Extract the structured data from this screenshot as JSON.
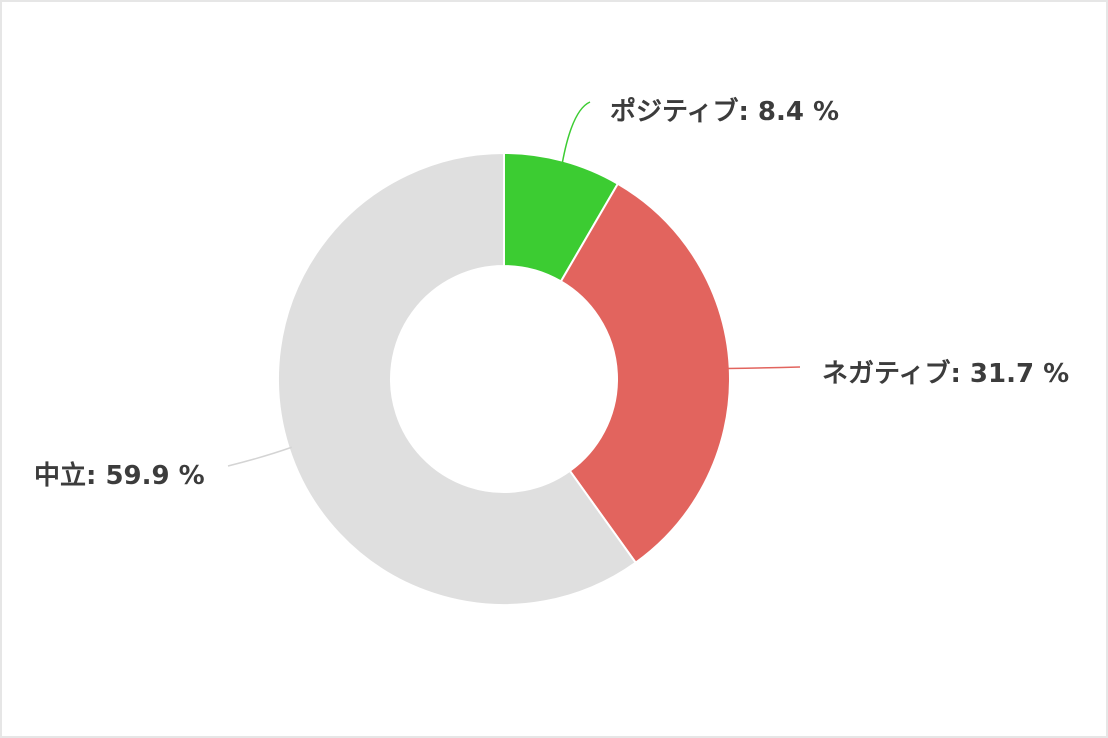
{
  "chart_data": {
    "type": "pie",
    "variant": "donut",
    "title": "",
    "slices": [
      {
        "name": "ポジティブ",
        "value": 8.4,
        "color": "#3ccc32",
        "label": "ポジティブ: 8.4 %"
      },
      {
        "name": "ネガティブ",
        "value": 31.7,
        "color": "#e2645e",
        "label": "ネガティブ: 31.7 %"
      },
      {
        "name": "中立",
        "value": 59.9,
        "color": "#dfdfdf",
        "label": "中立: 59.9 %"
      }
    ],
    "start_angle": "12 o'clock",
    "direction": "clockwise",
    "legend": "none",
    "labels": "outside with leader lines"
  }
}
